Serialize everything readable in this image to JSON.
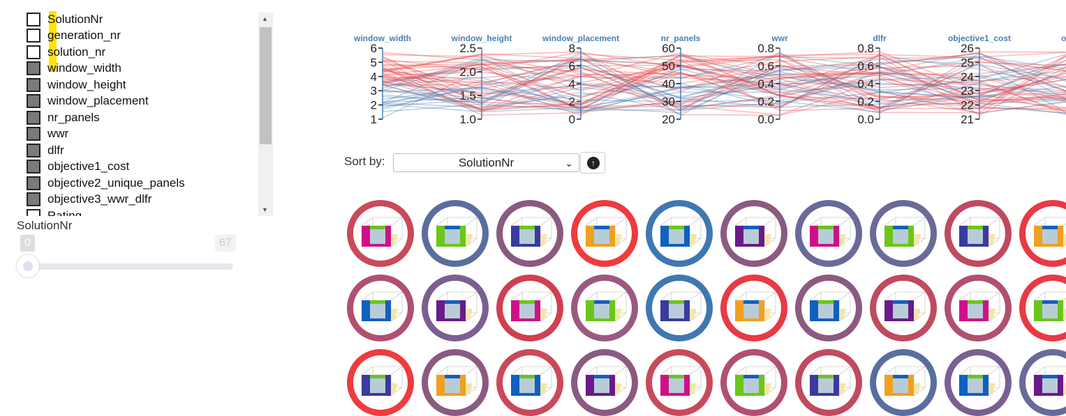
{
  "columns": {
    "items": [
      {
        "label": "SolutionNr",
        "selected": true
      },
      {
        "label": "generation_nr",
        "selected": true
      },
      {
        "label": "solution_nr",
        "selected": true
      },
      {
        "label": "window_width",
        "selected": false
      },
      {
        "label": "window_height",
        "selected": false
      },
      {
        "label": "window_placement",
        "selected": false
      },
      {
        "label": "nr_panels",
        "selected": false
      },
      {
        "label": "wwr",
        "selected": false
      },
      {
        "label": "dlfr",
        "selected": false
      },
      {
        "label": "objective1_cost",
        "selected": false
      },
      {
        "label": "objective2_unique_panels",
        "selected": false
      },
      {
        "label": "objective3_wwr_dlfr",
        "selected": false
      },
      {
        "label": "Rating",
        "selected": false
      }
    ]
  },
  "slider": {
    "label": "SolutionNr",
    "min": "0",
    "max": "67",
    "value": 0
  },
  "parallel": {
    "axes": [
      {
        "name": "window_width",
        "ticks": [
          "1",
          "2",
          "3",
          "4",
          "5",
          "6"
        ],
        "min": 1,
        "max": 6
      },
      {
        "name": "window_height",
        "ticks": [
          "1.0",
          "1.5",
          "2.0",
          "2.5"
        ],
        "min": 1,
        "max": 2.5
      },
      {
        "name": "window_placement",
        "ticks": [
          "0",
          "2",
          "4",
          "6",
          "8"
        ],
        "min": 0,
        "max": 8
      },
      {
        "name": "nr_panels",
        "ticks": [
          "20",
          "30",
          "40",
          "50",
          "60"
        ],
        "min": 20,
        "max": 60
      },
      {
        "name": "wwr",
        "ticks": [
          "0.0",
          "0.2",
          "0.4",
          "0.6",
          "0.8"
        ],
        "min": 0,
        "max": 0.8
      },
      {
        "name": "dlfr",
        "ticks": [
          "0.0",
          "0.2",
          "0.4",
          "0.6",
          "0.8"
        ],
        "min": 0,
        "max": 0.8
      },
      {
        "name": "objective1_cost",
        "ticks": [
          "21",
          "22",
          "23",
          "24",
          "25",
          "26"
        ],
        "min": 21,
        "max": 26
      },
      {
        "name": "objective",
        "ticks": [],
        "min": 0,
        "max": 1
      }
    ],
    "colors": {
      "low": "#3f78b0",
      "high": "#ef3b3e",
      "axis": "#4a7fb5"
    }
  },
  "sort": {
    "label": "Sort by:",
    "value": "SolutionNr",
    "direction_icon": "arrow-up-icon"
  },
  "solutions": {
    "ring_colors": [
      "#c94a5a",
      "#5a6e9e",
      "#8a5a80",
      "#ef3b3e",
      "#3f78b0",
      "#8a5a80",
      "#6a6a9a",
      "#6a6a9a",
      "#c04a60",
      "#e83a45",
      "#b05070",
      "#7a6090",
      "#d04050",
      "#9a5a80",
      "#3f78b0",
      "#e83a45",
      "#8a5a80",
      "#c04a60",
      "#b05070",
      "#e83a45",
      "#ef3b3e",
      "#8a5a80",
      "#c94a5a",
      "#8a5a80",
      "#c94a5a",
      "#b05070",
      "#c04a60",
      "#5a6e9e",
      "#7a6090",
      "#6a6a9a"
    ]
  }
}
